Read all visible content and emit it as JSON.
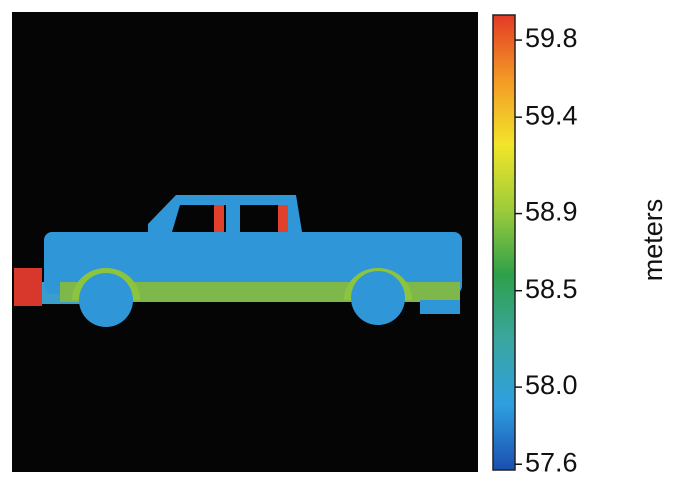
{
  "chart_data": {
    "type": "colorbar-image",
    "colorbar": {
      "label": "meters",
      "ylim": [
        57.57,
        59.93
      ],
      "yticks": [
        {
          "value": 57.6,
          "label": "57.6"
        },
        {
          "value": 58.0,
          "label": "58.0"
        },
        {
          "value": 58.5,
          "label": "58.5"
        },
        {
          "value": 58.9,
          "label": "58.9"
        },
        {
          "value": 59.4,
          "label": "59.4"
        },
        {
          "value": 59.8,
          "label": "59.8"
        }
      ],
      "colormap": [
        "#1a4fb0",
        "#2f9fe0",
        "#3aa6a0",
        "#2ea04a",
        "#9ccc3a",
        "#f2e52a",
        "#f39a26",
        "#e33a26"
      ]
    }
  }
}
